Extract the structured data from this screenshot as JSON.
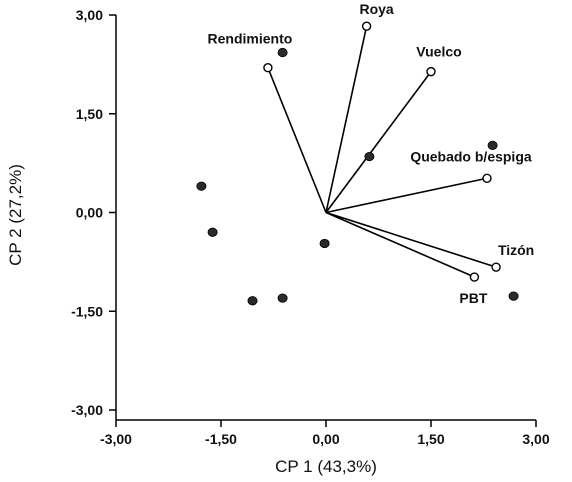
{
  "chart_data": {
    "type": "scatter",
    "title": "",
    "xlabel": "CP 1 (43,3%)",
    "ylabel": "CP 2 (27,2%)",
    "xlim": [
      -3.0,
      3.0
    ],
    "ylim": [
      -3.0,
      3.0
    ],
    "xticks": [
      "-3,00",
      "-1,50",
      "0,00",
      "1,50",
      "3,00"
    ],
    "yticks": [
      "3,00",
      "1,50",
      "0,00",
      "-1,50",
      "-3,00"
    ],
    "xtick_values": [
      -3.0,
      -1.5,
      0.0,
      1.5,
      3.0
    ],
    "ytick_values": [
      3.0,
      1.5,
      0.0,
      -1.5,
      -3.0
    ],
    "grid": false,
    "colors": {
      "axis": "#000000",
      "point_fill": "#2a2a2a",
      "vector": "#000000",
      "vector_end_fill": "#ffffff"
    },
    "observations": [
      {
        "x": -0.62,
        "y": 2.43
      },
      {
        "x": 2.38,
        "y": 1.02
      },
      {
        "x": 0.62,
        "y": 0.85
      },
      {
        "x": -1.78,
        "y": 0.4
      },
      {
        "x": -1.62,
        "y": -0.3
      },
      {
        "x": -0.02,
        "y": -0.47
      },
      {
        "x": -0.62,
        "y": -1.3
      },
      {
        "x": -1.05,
        "y": -1.34
      },
      {
        "x": 2.68,
        "y": -1.27
      }
    ],
    "variables": [
      {
        "name": "Rendimiento",
        "x": -0.83,
        "y": 2.2
      },
      {
        "name": "Roya",
        "x": 0.58,
        "y": 2.83
      },
      {
        "name": "Vuelco",
        "x": 1.5,
        "y": 2.14
      },
      {
        "name": "Quebado b/espiga",
        "x": 2.3,
        "y": 0.52
      },
      {
        "name": "Tizón",
        "x": 2.43,
        "y": -0.83
      },
      {
        "name": "PBT",
        "x": 2.12,
        "y": -0.98
      }
    ]
  }
}
